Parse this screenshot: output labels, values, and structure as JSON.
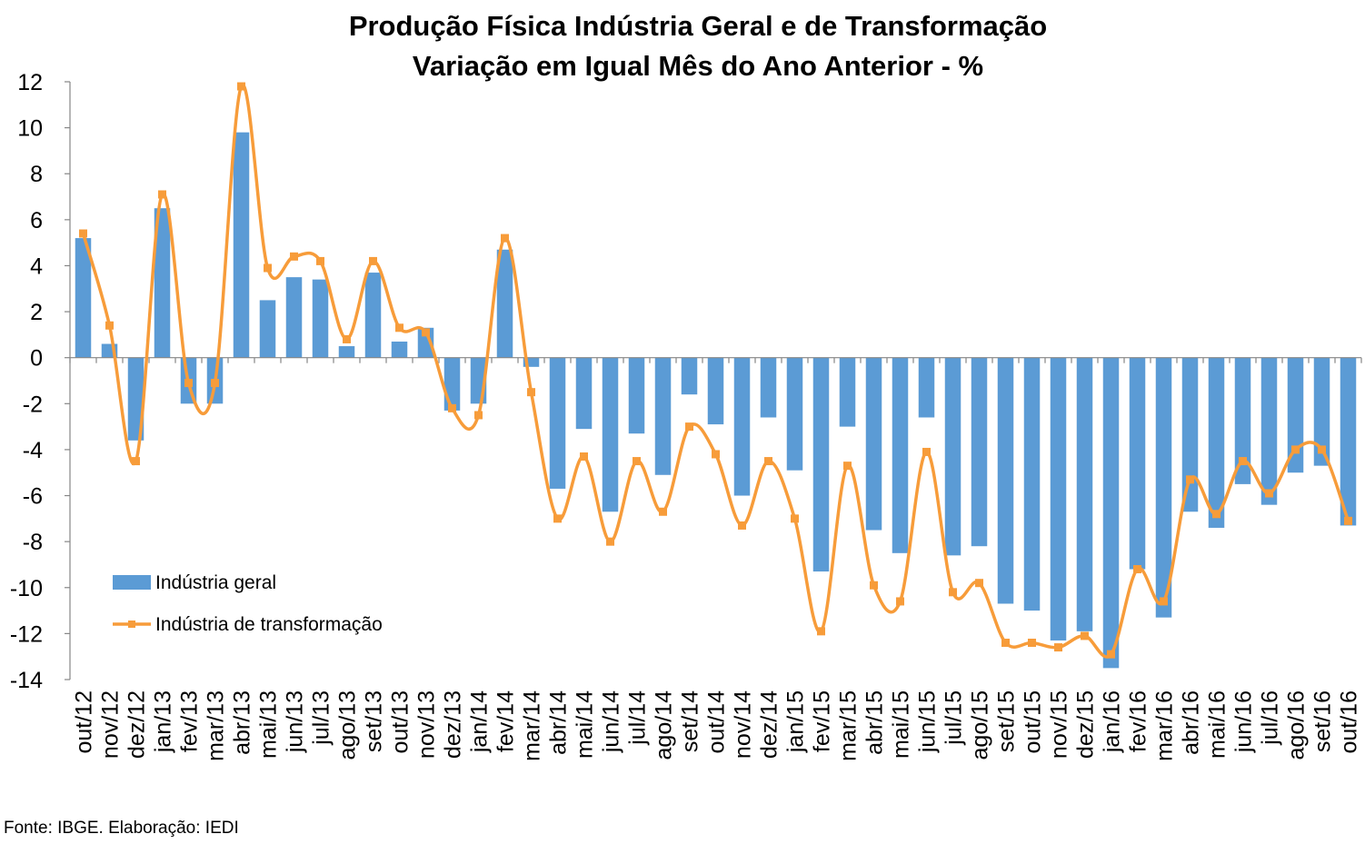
{
  "chart_data": {
    "type": "bar",
    "title": "Produção Física Indústria Geral e de Transformação",
    "subtitle": "Variação em Igual Mês do Ano Anterior - %",
    "xlabel": "",
    "ylabel": "",
    "ylim": [
      -14,
      12
    ],
    "yticks": [
      12,
      10,
      8,
      6,
      4,
      2,
      0,
      -2,
      -4,
      -6,
      -8,
      -10,
      -12,
      -14
    ],
    "grid": false,
    "legend_position": "left",
    "categories": [
      "out/12",
      "nov/12",
      "dez/12",
      "jan/13",
      "fev/13",
      "mar/13",
      "abr/13",
      "mai/13",
      "jun/13",
      "jul/13",
      "ago/13",
      "set/13",
      "out/13",
      "nov/13",
      "dez/13",
      "jan/14",
      "fev/14",
      "mar/14",
      "abr/14",
      "mai/14",
      "jun/14",
      "jul/14",
      "ago/14",
      "set/14",
      "out/14",
      "nov/14",
      "dez/14",
      "jan/15",
      "fev/15",
      "mar/15",
      "abr/15",
      "mai/15",
      "jun/15",
      "jul/15",
      "ago/15",
      "set/15",
      "out/15",
      "nov/15",
      "dez/15",
      "jan/16",
      "fev/16",
      "mar/16",
      "abr/16",
      "mai/16",
      "jun/16",
      "jul/16",
      "ago/16",
      "set/16",
      "out/16"
    ],
    "series": [
      {
        "name": "Indústria geral",
        "type": "bar",
        "color": "#5b9bd5",
        "values": [
          5.2,
          0.6,
          -3.6,
          6.5,
          -2.0,
          -2.0,
          9.8,
          2.5,
          3.5,
          3.4,
          0.5,
          3.7,
          0.7,
          1.3,
          -2.3,
          -2.0,
          4.7,
          -0.4,
          -5.7,
          -3.1,
          -6.7,
          -3.3,
          -5.1,
          -1.6,
          -2.9,
          -6.0,
          -2.6,
          -4.9,
          -9.3,
          -3.0,
          -7.5,
          -8.5,
          -2.6,
          -8.6,
          -8.2,
          -10.7,
          -11.0,
          -12.3,
          -11.9,
          -13.5,
          -9.2,
          -11.3,
          -6.7,
          -7.4,
          -5.5,
          -6.4,
          -5.0,
          -4.7,
          -7.3
        ]
      },
      {
        "name": "Indústria de transformação",
        "type": "line",
        "color": "#f79c3a",
        "values": [
          5.4,
          1.4,
          -4.5,
          7.1,
          -1.1,
          -1.1,
          11.8,
          3.9,
          4.4,
          4.2,
          0.8,
          4.2,
          1.3,
          1.1,
          -2.2,
          -2.5,
          5.2,
          -1.5,
          -7.0,
          -4.3,
          -8.0,
          -4.5,
          -6.7,
          -3.0,
          -4.2,
          -7.3,
          -4.5,
          -7.0,
          -11.9,
          -4.7,
          -9.9,
          -10.6,
          -4.1,
          -10.2,
          -9.8,
          -12.4,
          -12.4,
          -12.6,
          -12.1,
          -12.9,
          -9.2,
          -10.6,
          -5.3,
          -6.8,
          -4.5,
          -5.9,
          -4.0,
          -4.0,
          -7.1
        ]
      }
    ]
  },
  "source_note": "Fonte: IBGE. Elaboração: IEDI"
}
